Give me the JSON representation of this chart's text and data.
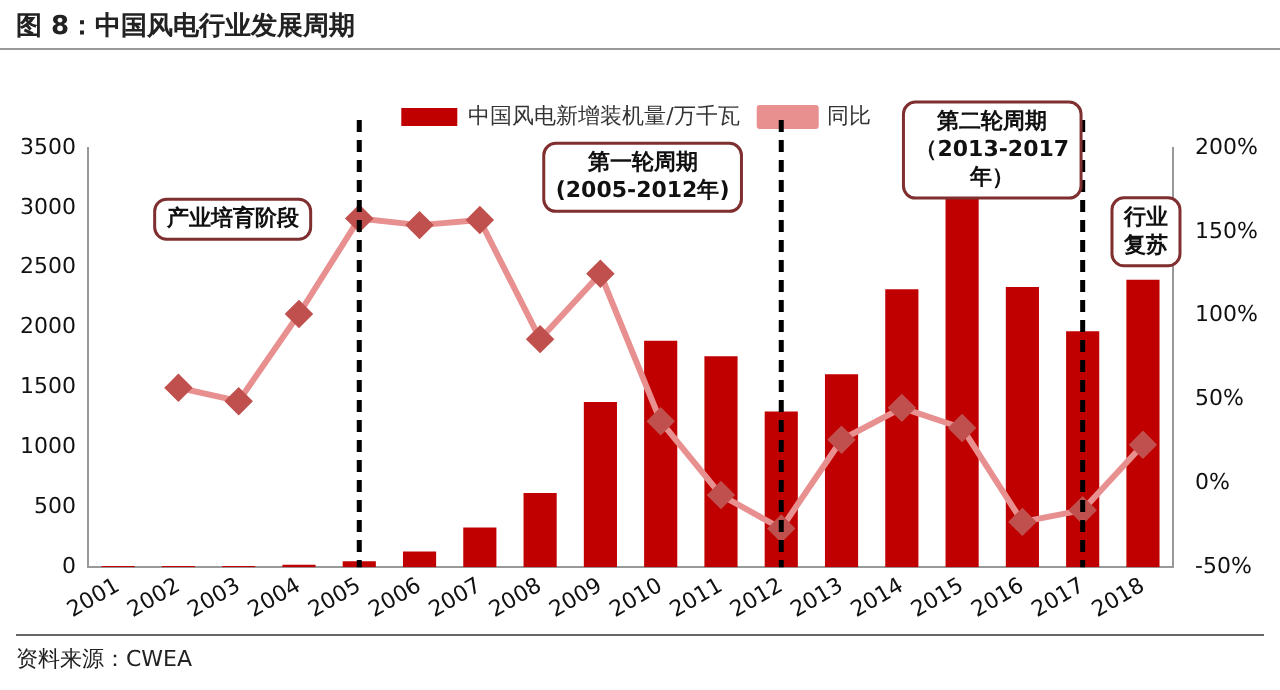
{
  "chart_data": {
    "type": "bar",
    "title": "图 8：中国风电行业发展周期",
    "categories": [
      "2001",
      "2002",
      "2003",
      "2004",
      "2005",
      "2006",
      "2007",
      "2008",
      "2009",
      "2010",
      "2011",
      "2012",
      "2013",
      "2014",
      "2015",
      "2016",
      "2017",
      "2018"
    ],
    "series": [
      {
        "name": "中国风电新增装机量/万千瓦",
        "color": "#c00000",
        "values": [
          10,
          10,
          10,
          20,
          50,
          130,
          330,
          620,
          1380,
          1890,
          1760,
          1300,
          1610,
          2320,
          3080,
          2340,
          1970,
          2400
        ]
      },
      {
        "name": "同比",
        "type": "line",
        "axis": "y2",
        "color": "#e89090",
        "marker": "diamond",
        "values": [
          null,
          57,
          49,
          101,
          158,
          154,
          157,
          86,
          125,
          37,
          -7,
          -27,
          26,
          45,
          33,
          -23,
          -16,
          23
        ]
      }
    ],
    "ylim": [
      0,
      3500
    ],
    "yticks": [
      0,
      500,
      1000,
      1500,
      2000,
      2500,
      3000,
      3500
    ],
    "y2lim": [
      -50,
      200
    ],
    "y2ticks": [
      {
        "value": -50,
        "label": "-50%"
      },
      {
        "value": 0,
        "label": "0%"
      },
      {
        "value": 50,
        "label": "50%"
      },
      {
        "value": 100,
        "label": "100%"
      },
      {
        "value": 150,
        "label": "150%"
      },
      {
        "value": 200,
        "label": "200%"
      }
    ],
    "ref_lines": [
      {
        "axis": "x",
        "value": "2005",
        "line_style": "dashed",
        "color": "#000000"
      },
      {
        "axis": "x",
        "value": "2012",
        "line_style": "dashed",
        "color": "#000000"
      },
      {
        "axis": "x",
        "value": "2017",
        "line_style": "dashed",
        "color": "#000000"
      }
    ],
    "annotations": [
      "产业培育阶段",
      "第一轮周期(2005-2012年)",
      "第二轮周期（2013-2017年）",
      "行业复苏",
      "资料来源：CWEA"
    ],
    "legend": "top",
    "grid": false
  }
}
